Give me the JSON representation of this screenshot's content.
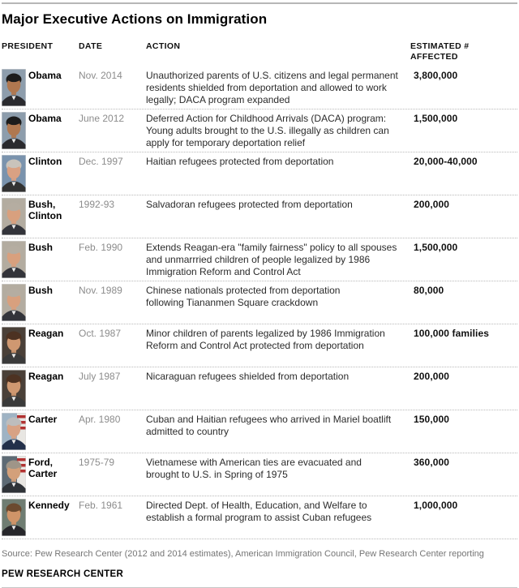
{
  "title": "Major Executive Actions on Immigration",
  "columns": {
    "president": "PRESIDENT",
    "date": "DATE",
    "action": "ACTION",
    "affected": "ESTIMATED # AFFECTED"
  },
  "chart_data": {
    "type": "table",
    "title": "Major Executive Actions on Immigration",
    "columns": [
      "PRESIDENT",
      "DATE",
      "ACTION",
      "ESTIMATED # AFFECTED"
    ],
    "rows": [
      {
        "president": "Obama",
        "date": "Nov. 2014",
        "action": "Unauthorized parents of U.S. citizens and legal permanent\nresidents shielded from deportation and allowed to work\nlegally; DACA program expanded",
        "affected": "3,800,000",
        "portrait": {
          "bg": "#8d9dac",
          "hair": "#1c1c1c",
          "skin": "#b07850",
          "suit": "#2a2a2e",
          "flag": false
        }
      },
      {
        "president": "Obama",
        "date": "June 2012",
        "action": "Deferred Action for Childhood Arrivals (DACA) program:\nYoung adults brought to the U.S. illegally as children can\napply for temporary deportation relief",
        "affected": "1,500,000",
        "portrait": {
          "bg": "#8d9dac",
          "hair": "#1c1c1c",
          "skin": "#b07850",
          "suit": "#2a2a2e",
          "flag": false
        }
      },
      {
        "president": "Clinton",
        "date": "Dec. 1997",
        "action": "Haitian refugees protected from deportation",
        "affected": "20,000-40,000",
        "portrait": {
          "bg": "#7a93ad",
          "hair": "#c9c3bb",
          "skin": "#d9a183",
          "suit": "#333333",
          "flag": false
        }
      },
      {
        "president": "Bush,\nClinton",
        "date": "1992-93",
        "action": "Salvadoran refugees protected from deportation",
        "affected": "200,000",
        "portrait": {
          "bg": "#b3aca0",
          "hair": "#b5ada1",
          "skin": "#d8a07e",
          "suit": "#33343a",
          "flag": false
        }
      },
      {
        "president": "Bush",
        "date": "Feb. 1990",
        "action": "Extends Reagan-era \"family fairness\" policy to all spouses\nand unmarrried children of people legalized by 1986\nImmigration Reform and Control Act",
        "affected": "1,500,000",
        "portrait": {
          "bg": "#b3aca0",
          "hair": "#b5ada1",
          "skin": "#d8a07e",
          "suit": "#33343a",
          "flag": false
        }
      },
      {
        "president": "Bush",
        "date": "Nov. 1989",
        "action": "Chinese nationals protected from deportation\nfollowing Tiananmen Square crackdown",
        "affected": "80,000",
        "portrait": {
          "bg": "#b3aca0",
          "hair": "#b5ada1",
          "skin": "#d8a07e",
          "suit": "#33343a",
          "flag": false
        }
      },
      {
        "president": "Reagan",
        "date": "Oct. 1987",
        "action": "Minor children of parents legalized by 1986 Immigration\nReform and Control Act protected from deportation",
        "affected": "100,000 families",
        "portrait": {
          "bg": "#4a4038",
          "hair": "#4d3222",
          "skin": "#cf9871",
          "suit": "#3a3a3a",
          "flag": false
        }
      },
      {
        "president": "Reagan",
        "date": "July 1987",
        "action": "Nicaraguan refugees shielded from deportation",
        "affected": "200,000",
        "portrait": {
          "bg": "#4a4038",
          "hair": "#4d3222",
          "skin": "#cf9871",
          "suit": "#3a3a3a",
          "flag": false
        }
      },
      {
        "president": "Carter",
        "date": "Apr. 1980",
        "action": "Cuban and Haitian refugees who arrived in Mariel boatlift\nadmitted to country",
        "affected": "150,000",
        "portrait": {
          "bg": "#9fb3c4",
          "hair": "#bdbdbd",
          "skin": "#d8a284",
          "suit": "#23304a",
          "flag": true
        }
      },
      {
        "president": "Ford,\nCarter",
        "date": "1975-79",
        "action": "Vietnamese with American ties are evacuated and\nbrought to U.S. in Spring of 1975",
        "affected": "360,000",
        "portrait": {
          "bg": "#5d6a74",
          "hair": "#9f9588",
          "skin": "#d3a07a",
          "suit": "#2f3338",
          "flag": true
        }
      },
      {
        "president": "Kennedy",
        "date": "Feb. 1961",
        "action": "Directed Dept. of Health, Education, and Welfare to\nestablish a formal program to assist Cuban refugees",
        "affected": "1,000,000",
        "portrait": {
          "bg": "#6f7d72",
          "hair": "#6b4a2f",
          "skin": "#cf9468",
          "suit": "#26262a",
          "flag": false
        }
      }
    ]
  },
  "footer": {
    "source": "Source: Pew Research Center (2012 and 2014 estimates), American Immigration Council, Pew Research Center reporting",
    "brand": "PEW RESEARCH CENTER"
  },
  "colors": {
    "rule_top": "#b7b7b7",
    "rule_bottom": "#c6c6c6",
    "row_separator": "#b9b9b9",
    "date_text": "#8c8c8c",
    "body_text": "#2b2b2b",
    "source_text": "#757575"
  }
}
